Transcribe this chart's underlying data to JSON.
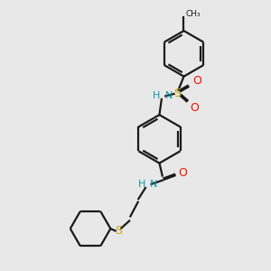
{
  "bg_color": "#e8e8e8",
  "bond_color": "#1a1a1a",
  "N_color": "#1199aa",
  "O_color": "#ee1100",
  "S_color": "#ccaa00",
  "line_width": 1.6,
  "dbo": 0.07,
  "figsize": [
    3.0,
    3.0
  ],
  "dpi": 100,
  "xlim": [
    0,
    10
  ],
  "ylim": [
    0,
    10
  ]
}
